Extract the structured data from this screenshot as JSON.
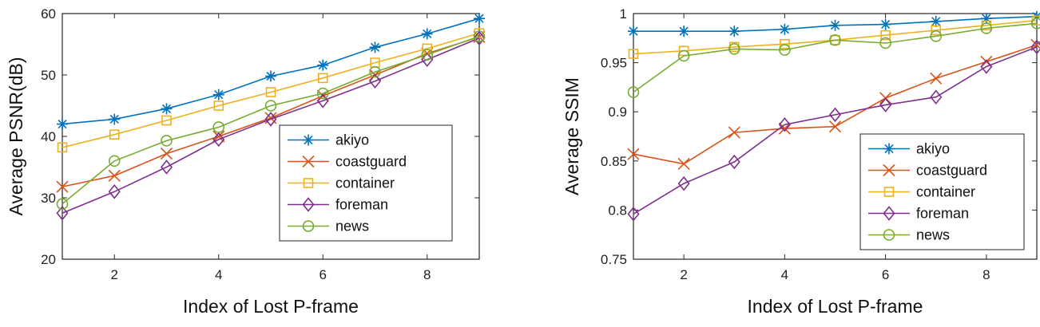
{
  "chart_data": [
    {
      "type": "line",
      "title": "",
      "xlabel": "Index of Lost P-frame",
      "ylabel": "Average PSNR(dB)",
      "xlim": [
        1,
        9
      ],
      "ylim": [
        20,
        60
      ],
      "xticks": [
        2,
        4,
        6,
        8
      ],
      "yticks": [
        20,
        30,
        40,
        50,
        60
      ],
      "x": [
        1,
        2,
        3,
        4,
        5,
        6,
        7,
        8,
        9
      ],
      "grid": false,
      "legend_position": "bottom-right",
      "series": [
        {
          "name": "akiyo",
          "color": "#0072BD",
          "marker": "asterisk",
          "values": [
            42.0,
            42.8,
            44.5,
            46.8,
            49.8,
            51.6,
            54.5,
            56.7,
            59.2
          ]
        },
        {
          "name": "coastguard",
          "color": "#D95319",
          "marker": "x",
          "values": [
            31.8,
            33.6,
            37.2,
            40.0,
            43.0,
            46.6,
            50.0,
            53.5,
            56.2
          ]
        },
        {
          "name": "container",
          "color": "#EDB120",
          "marker": "square",
          "values": [
            38.2,
            40.3,
            42.6,
            45.0,
            47.2,
            49.5,
            52.0,
            54.3,
            56.8
          ]
        },
        {
          "name": "foreman",
          "color": "#7E2F8E",
          "marker": "diamond",
          "values": [
            27.5,
            31.0,
            35.0,
            39.5,
            42.8,
            45.8,
            49.0,
            52.5,
            56.0
          ]
        },
        {
          "name": "news",
          "color": "#77AC30",
          "marker": "circle",
          "values": [
            29.0,
            36.0,
            39.3,
            41.5,
            45.0,
            47.0,
            50.5,
            53.3,
            56.3
          ]
        }
      ]
    },
    {
      "type": "line",
      "title": "",
      "xlabel": "Index of Lost P-frame",
      "ylabel": "Average SSIM",
      "xlim": [
        1,
        9
      ],
      "ylim": [
        0.75,
        1
      ],
      "xticks": [
        2,
        4,
        6,
        8
      ],
      "yticks": [
        0.75,
        0.8,
        0.85,
        0.9,
        0.95,
        1
      ],
      "ytick_labels": [
        "0.75",
        "0.8",
        "0.85",
        "0.9",
        "0.95",
        "1"
      ],
      "x": [
        1,
        2,
        3,
        4,
        5,
        6,
        7,
        8,
        9
      ],
      "grid": false,
      "legend_position": "bottom-right",
      "series": [
        {
          "name": "akiyo",
          "color": "#0072BD",
          "marker": "asterisk",
          "values": [
            0.982,
            0.982,
            0.982,
            0.984,
            0.988,
            0.989,
            0.992,
            0.995,
            0.997
          ]
        },
        {
          "name": "coastguard",
          "color": "#D95319",
          "marker": "x",
          "values": [
            0.857,
            0.847,
            0.879,
            0.883,
            0.885,
            0.914,
            0.934,
            0.951,
            0.968
          ]
        },
        {
          "name": "container",
          "color": "#EDB120",
          "marker": "square",
          "values": [
            0.959,
            0.962,
            0.966,
            0.969,
            0.973,
            0.978,
            0.983,
            0.988,
            0.993
          ]
        },
        {
          "name": "foreman",
          "color": "#7E2F8E",
          "marker": "diamond",
          "values": [
            0.796,
            0.827,
            0.849,
            0.887,
            0.897,
            0.907,
            0.915,
            0.946,
            0.966
          ]
        },
        {
          "name": "news",
          "color": "#77AC30",
          "marker": "circle",
          "values": [
            0.92,
            0.957,
            0.964,
            0.963,
            0.973,
            0.97,
            0.977,
            0.985,
            0.99
          ]
        }
      ]
    }
  ]
}
